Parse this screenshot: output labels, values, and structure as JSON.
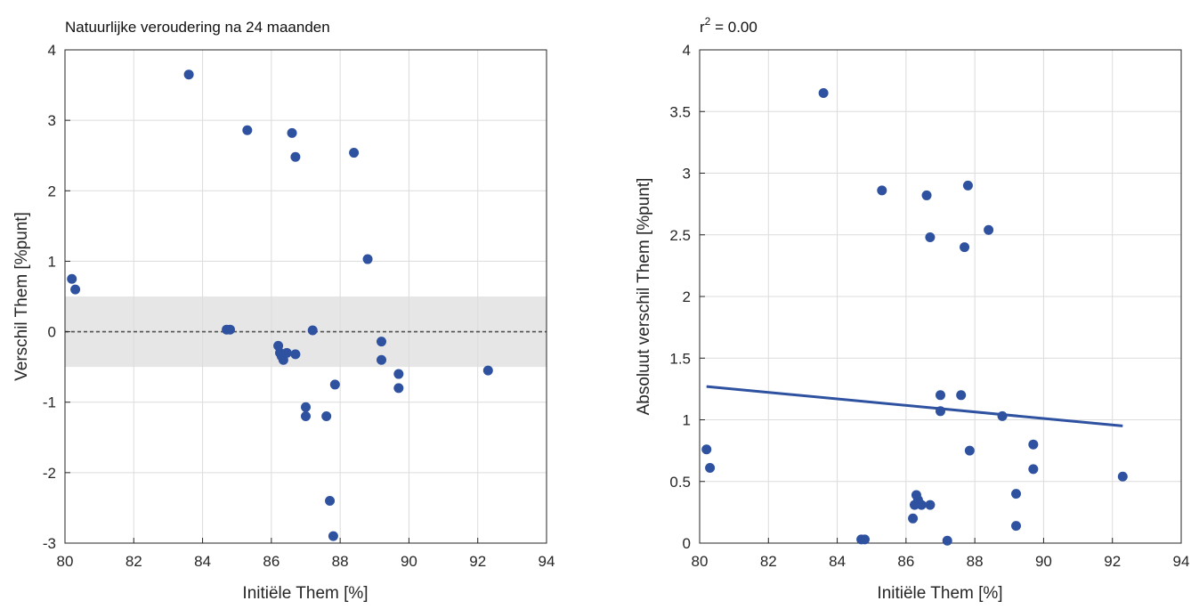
{
  "chart_data": [
    {
      "type": "scatter",
      "title": "Natuurlijke veroudering na 24 maanden",
      "xlabel": "Initiële Them [%]",
      "ylabel": "Verschil Them [%punt]",
      "xlim": [
        80,
        94
      ],
      "ylim": [
        -3,
        4
      ],
      "xticks": [
        "80",
        "82",
        "84",
        "86",
        "88",
        "90",
        "92",
        "94"
      ],
      "yticks": [
        "-3",
        "-2",
        "-1",
        "0",
        "1",
        "2",
        "3",
        "4"
      ],
      "grid": true,
      "zero_line": 0,
      "band": [
        -0.5,
        0.5
      ],
      "marker_color": "#2f52a0",
      "points": [
        [
          80.2,
          0.75
        ],
        [
          80.3,
          0.6
        ],
        [
          83.6,
          3.65
        ],
        [
          84.7,
          0.03
        ],
        [
          84.8,
          0.03
        ],
        [
          85.3,
          2.86
        ],
        [
          86.2,
          -0.2
        ],
        [
          86.25,
          -0.3
        ],
        [
          86.3,
          -0.35
        ],
        [
          86.35,
          -0.4
        ],
        [
          86.45,
          -0.3
        ],
        [
          86.6,
          2.82
        ],
        [
          86.7,
          2.48
        ],
        [
          86.7,
          -0.32
        ],
        [
          87.0,
          -1.07
        ],
        [
          87.0,
          -1.2
        ],
        [
          87.2,
          0.02
        ],
        [
          87.6,
          -1.2
        ],
        [
          87.7,
          -2.4
        ],
        [
          87.8,
          -2.9
        ],
        [
          87.85,
          -0.75
        ],
        [
          88.4,
          2.54
        ],
        [
          88.8,
          1.03
        ],
        [
          89.2,
          -0.14
        ],
        [
          89.2,
          -0.4
        ],
        [
          89.7,
          -0.6
        ],
        [
          89.7,
          -0.8
        ],
        [
          92.3,
          -0.55
        ]
      ]
    },
    {
      "type": "scatter",
      "title": "r² = 0.00",
      "xlabel": "Initiële Them [%]",
      "ylabel": "Absoluut verschil Them [%punt]",
      "xlim": [
        80,
        94
      ],
      "ylim": [
        0,
        4
      ],
      "xticks": [
        "80",
        "82",
        "84",
        "86",
        "88",
        "90",
        "92",
        "94"
      ],
      "yticks": [
        "0",
        "0.5",
        "1",
        "1.5",
        "2",
        "2.5",
        "3",
        "3.5",
        "4"
      ],
      "grid": true,
      "marker_color": "#2f52a0",
      "fit_line": [
        [
          80.2,
          1.27
        ],
        [
          92.3,
          0.95
        ]
      ],
      "points": [
        [
          80.2,
          0.76
        ],
        [
          80.3,
          0.61
        ],
        [
          83.6,
          3.65
        ],
        [
          84.7,
          0.03
        ],
        [
          84.8,
          0.03
        ],
        [
          85.3,
          2.86
        ],
        [
          86.2,
          0.2
        ],
        [
          86.25,
          0.31
        ],
        [
          86.3,
          0.39
        ],
        [
          86.35,
          0.35
        ],
        [
          86.45,
          0.31
        ],
        [
          86.6,
          2.82
        ],
        [
          86.7,
          2.48
        ],
        [
          86.7,
          0.31
        ],
        [
          87.0,
          1.2
        ],
        [
          87.0,
          1.07
        ],
        [
          87.2,
          0.02
        ],
        [
          87.6,
          1.2
        ],
        [
          87.7,
          2.4
        ],
        [
          87.8,
          2.9
        ],
        [
          87.85,
          0.75
        ],
        [
          88.4,
          2.54
        ],
        [
          88.8,
          1.03
        ],
        [
          89.2,
          0.14
        ],
        [
          89.2,
          0.4
        ],
        [
          89.7,
          0.6
        ],
        [
          89.7,
          0.8
        ],
        [
          92.3,
          0.54
        ]
      ]
    }
  ]
}
